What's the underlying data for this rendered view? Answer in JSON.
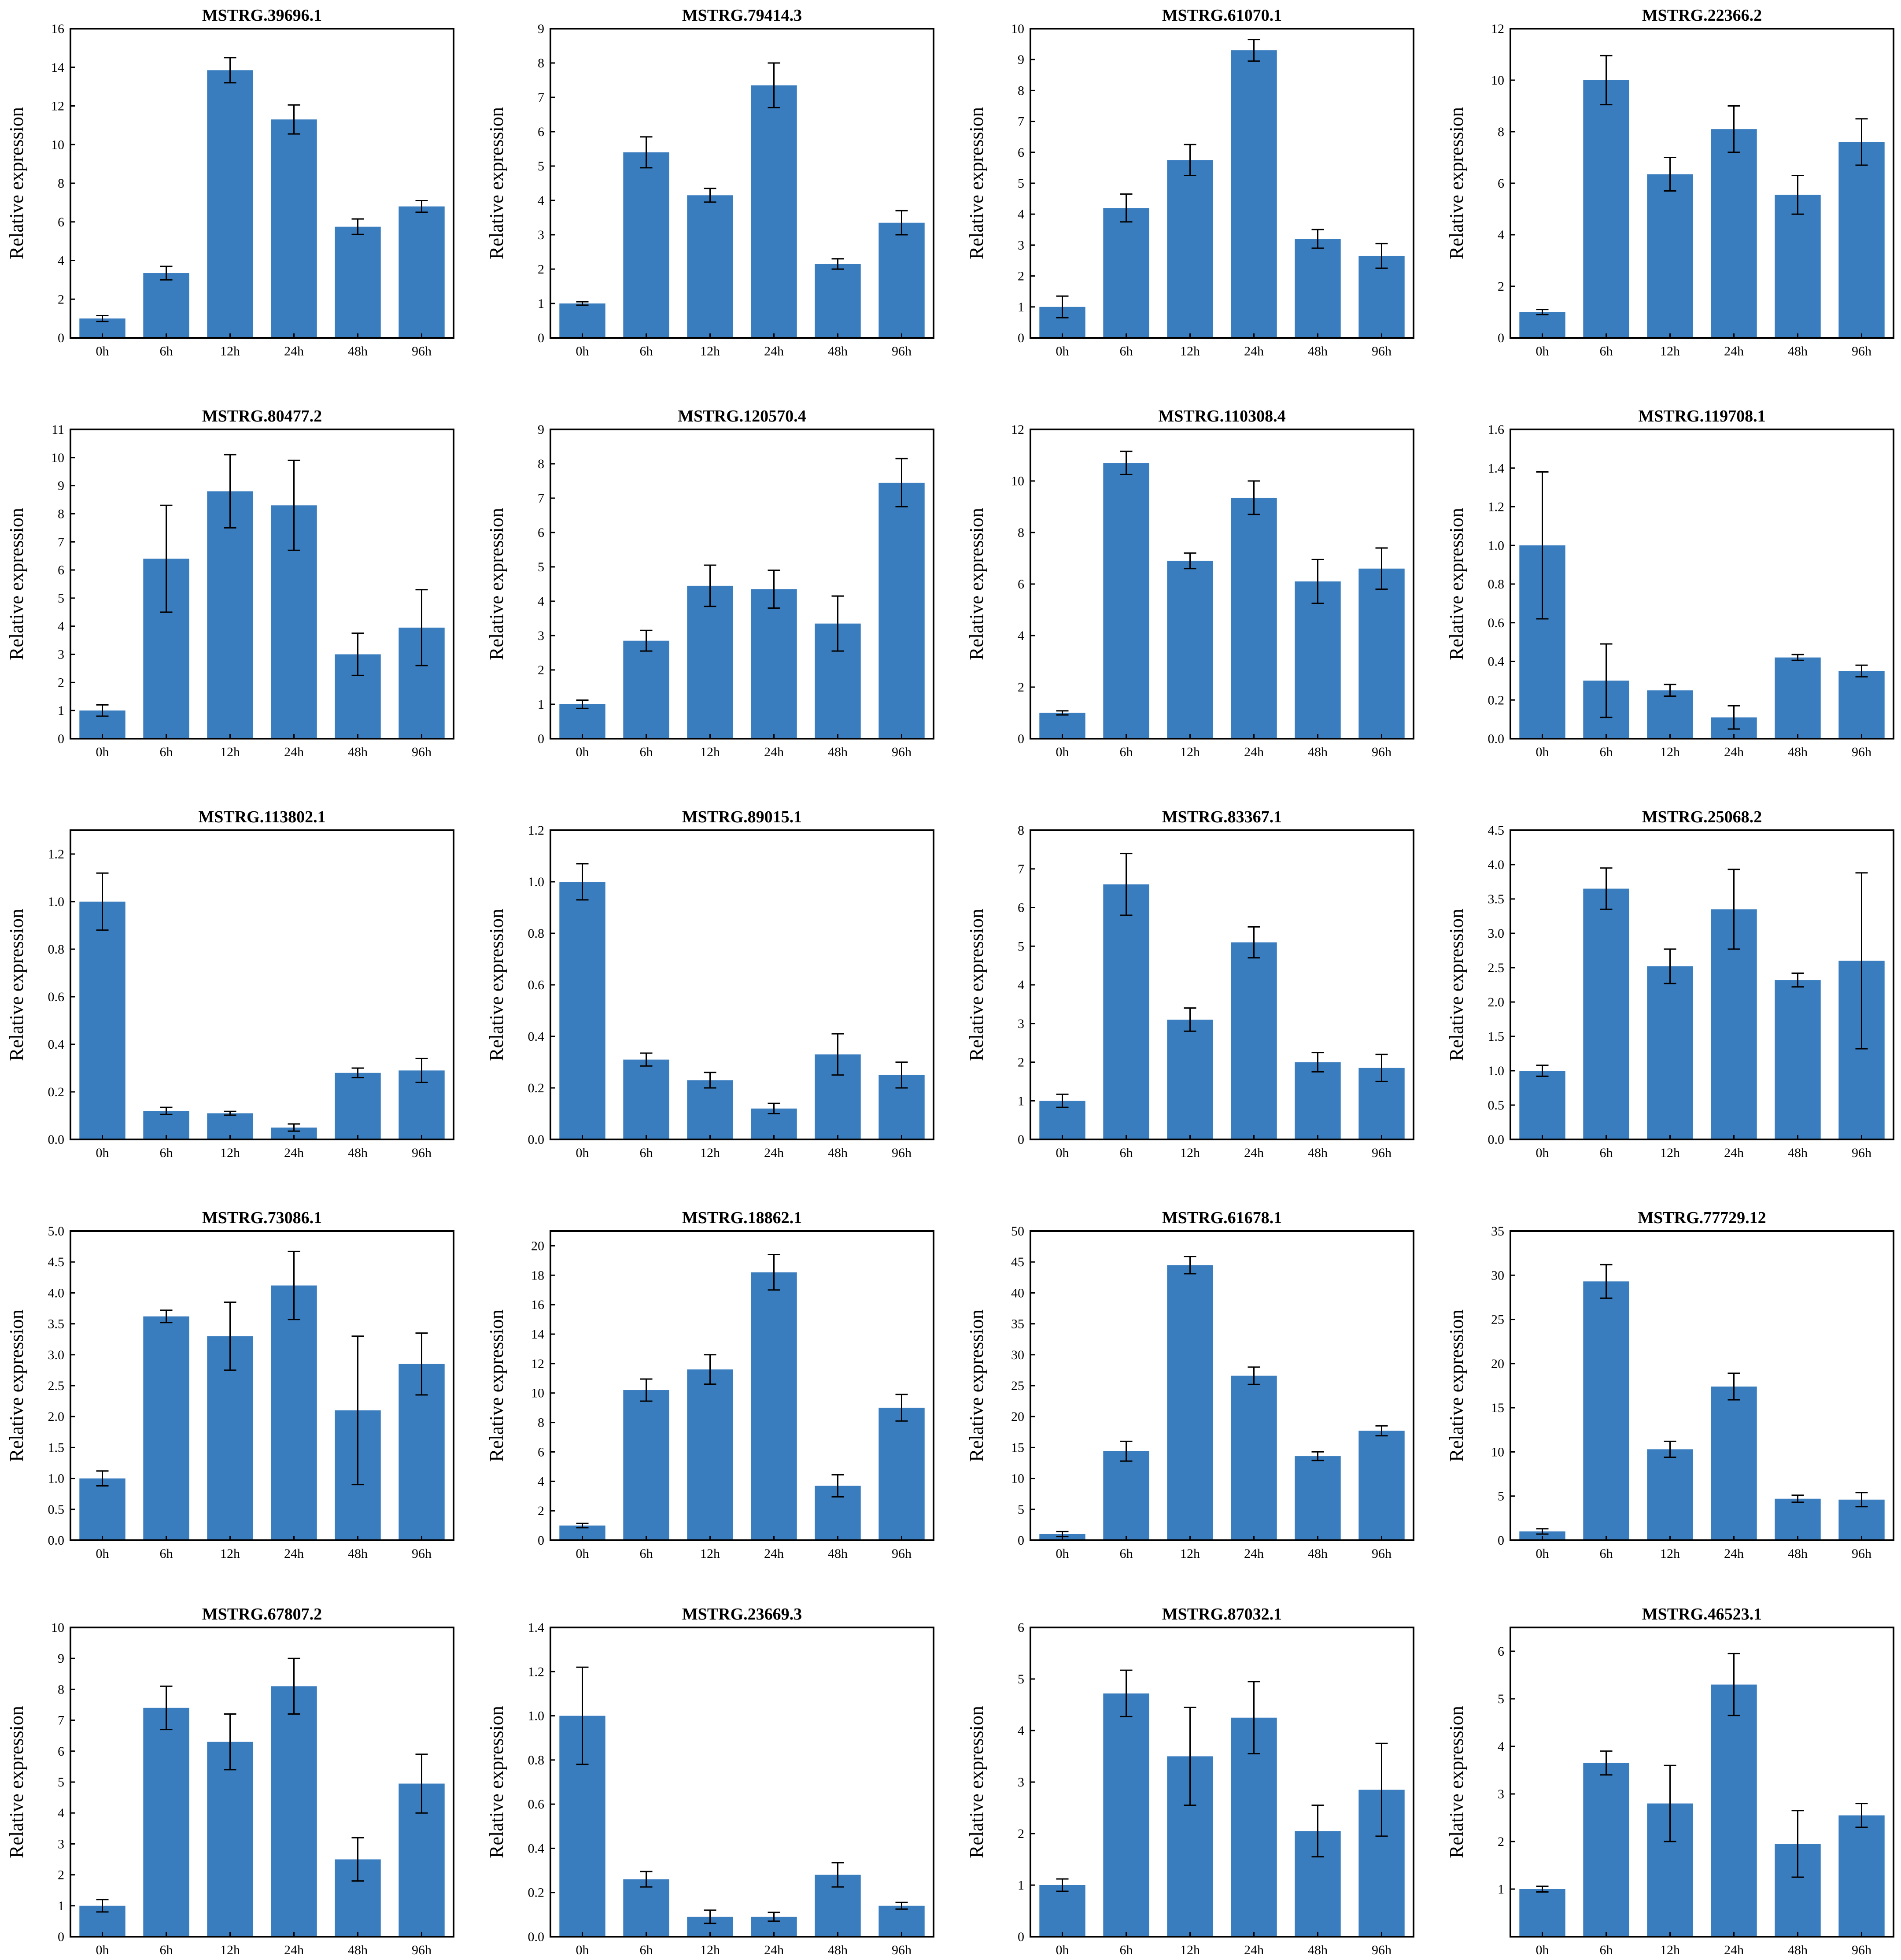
{
  "figure": {
    "bar_color": "#3a7dbf",
    "error_bar_color": "#000000"
  },
  "chart_data": [
    {
      "type": "bar",
      "title": "MSTRG.39696.1",
      "ylabel": "Relative expression",
      "categories": [
        "0h",
        "6h",
        "12h",
        "24h",
        "48h",
        "96h"
      ],
      "values": [
        1.0,
        3.35,
        13.85,
        11.3,
        5.75,
        6.8
      ],
      "errors": [
        0.15,
        0.35,
        0.65,
        0.75,
        0.4,
        0.3
      ],
      "ylim": [
        0,
        16
      ],
      "yticks": [
        0,
        2,
        4,
        6,
        8,
        10,
        12,
        14,
        16
      ]
    },
    {
      "type": "bar",
      "title": "MSTRG.79414.3",
      "ylabel": "Relative expression",
      "categories": [
        "0h",
        "6h",
        "12h",
        "24h",
        "48h",
        "96h"
      ],
      "values": [
        1.0,
        5.4,
        4.15,
        7.35,
        2.15,
        3.35
      ],
      "errors": [
        0.05,
        0.45,
        0.2,
        0.65,
        0.15,
        0.35
      ],
      "ylim": [
        0,
        9
      ],
      "yticks": [
        0,
        1,
        2,
        3,
        4,
        5,
        6,
        7,
        8,
        9
      ]
    },
    {
      "type": "bar",
      "title": "MSTRG.61070.1",
      "ylabel": "Relative expression",
      "categories": [
        "0h",
        "6h",
        "12h",
        "24h",
        "48h",
        "96h"
      ],
      "values": [
        1.0,
        4.2,
        5.75,
        9.3,
        3.2,
        2.65
      ],
      "errors": [
        0.35,
        0.45,
        0.5,
        0.35,
        0.3,
        0.4
      ],
      "ylim": [
        0,
        10
      ],
      "yticks": [
        0,
        1,
        2,
        3,
        4,
        5,
        6,
        7,
        8,
        9,
        10
      ]
    },
    {
      "type": "bar",
      "title": "MSTRG.22366.2",
      "ylabel": "Relative expression",
      "categories": [
        "0h",
        "6h",
        "12h",
        "24h",
        "48h",
        "96h"
      ],
      "values": [
        1.0,
        10.0,
        6.35,
        8.1,
        5.55,
        7.6
      ],
      "errors": [
        0.1,
        0.95,
        0.65,
        0.9,
        0.75,
        0.9
      ],
      "ylim": [
        0,
        12
      ],
      "yticks": [
        0,
        2,
        4,
        6,
        8,
        10,
        12
      ]
    },
    {
      "type": "bar",
      "title": "MSTRG.80477.2",
      "ylabel": "Relative expression",
      "categories": [
        "0h",
        "6h",
        "12h",
        "24h",
        "48h",
        "96h"
      ],
      "values": [
        1.0,
        6.4,
        8.8,
        8.3,
        3.0,
        3.95
      ],
      "errors": [
        0.2,
        1.9,
        1.3,
        1.6,
        0.75,
        1.35
      ],
      "ylim": [
        0,
        11
      ],
      "yticks": [
        0,
        1,
        2,
        3,
        4,
        5,
        6,
        7,
        8,
        9,
        10,
        11
      ]
    },
    {
      "type": "bar",
      "title": "MSTRG.120570.4",
      "ylabel": "Relative expression",
      "categories": [
        "0h",
        "6h",
        "12h",
        "24h",
        "48h",
        "96h"
      ],
      "values": [
        1.0,
        2.85,
        4.45,
        4.35,
        3.35,
        7.45
      ],
      "errors": [
        0.12,
        0.3,
        0.6,
        0.55,
        0.8,
        0.7
      ],
      "ylim": [
        0,
        9
      ],
      "yticks": [
        0,
        1,
        2,
        3,
        4,
        5,
        6,
        7,
        8,
        9
      ]
    },
    {
      "type": "bar",
      "title": "MSTRG.110308.4",
      "ylabel": "Relative expression",
      "categories": [
        "0h",
        "6h",
        "12h",
        "24h",
        "48h",
        "96h"
      ],
      "values": [
        1.0,
        10.7,
        6.9,
        9.35,
        6.1,
        6.6
      ],
      "errors": [
        0.08,
        0.45,
        0.3,
        0.65,
        0.85,
        0.8
      ],
      "ylim": [
        0,
        12
      ],
      "yticks": [
        0,
        2,
        4,
        6,
        8,
        10,
        12
      ]
    },
    {
      "type": "bar",
      "title": "MSTRG.119708.1",
      "ylabel": "Relative expression",
      "categories": [
        "0h",
        "6h",
        "12h",
        "24h",
        "48h",
        "96h"
      ],
      "values": [
        1.0,
        0.3,
        0.25,
        0.11,
        0.42,
        0.35
      ],
      "errors": [
        0.38,
        0.19,
        0.03,
        0.06,
        0.015,
        0.03
      ],
      "ylim": [
        0,
        1.6
      ],
      "yticks": [
        0.0,
        0.2,
        0.4,
        0.6,
        0.8,
        1.0,
        1.2,
        1.4,
        1.6
      ]
    },
    {
      "type": "bar",
      "title": "MSTRG.113802.1",
      "ylabel": "Relative expression",
      "categories": [
        "0h",
        "6h",
        "12h",
        "24h",
        "48h",
        "96h"
      ],
      "values": [
        1.0,
        0.12,
        0.11,
        0.05,
        0.28,
        0.29
      ],
      "errors": [
        0.12,
        0.015,
        0.008,
        0.015,
        0.02,
        0.05
      ],
      "ylim": [
        0,
        1.3
      ],
      "yticks": [
        0.0,
        0.2,
        0.4,
        0.6,
        0.8,
        1.0,
        1.2
      ]
    },
    {
      "type": "bar",
      "title": "MSTRG.89015.1",
      "ylabel": "Relative expression",
      "categories": [
        "0h",
        "6h",
        "12h",
        "24h",
        "48h",
        "96h"
      ],
      "values": [
        1.0,
        0.31,
        0.23,
        0.12,
        0.33,
        0.25
      ],
      "errors": [
        0.07,
        0.025,
        0.03,
        0.02,
        0.08,
        0.05
      ],
      "ylim": [
        0,
        1.2
      ],
      "yticks": [
        0.0,
        0.2,
        0.4,
        0.6,
        0.8,
        1.0,
        1.2
      ]
    },
    {
      "type": "bar",
      "title": "MSTRG.83367.1",
      "ylabel": "Relative expression",
      "categories": [
        "0h",
        "6h",
        "12h",
        "24h",
        "48h",
        "96h"
      ],
      "values": [
        1.0,
        6.6,
        3.1,
        5.1,
        2.0,
        1.85
      ],
      "errors": [
        0.17,
        0.8,
        0.3,
        0.4,
        0.25,
        0.35
      ],
      "ylim": [
        0,
        8
      ],
      "yticks": [
        0,
        1,
        2,
        3,
        4,
        5,
        6,
        7,
        8
      ]
    },
    {
      "type": "bar",
      "title": "MSTRG.25068.2",
      "ylabel": "Relative expression",
      "categories": [
        "0h",
        "6h",
        "12h",
        "24h",
        "48h",
        "96h"
      ],
      "values": [
        1.0,
        3.65,
        2.52,
        3.35,
        2.32,
        2.6
      ],
      "errors": [
        0.08,
        0.3,
        0.25,
        0.58,
        0.1,
        1.28
      ],
      "ylim": [
        0,
        4.5
      ],
      "yticks": [
        0.0,
        0.5,
        1.0,
        1.5,
        2.0,
        2.5,
        3.0,
        3.5,
        4.0,
        4.5
      ]
    },
    {
      "type": "bar",
      "title": "MSTRG.73086.1",
      "ylabel": "Relative expression",
      "categories": [
        "0h",
        "6h",
        "12h",
        "24h",
        "48h",
        "96h"
      ],
      "values": [
        1.0,
        3.62,
        3.3,
        4.12,
        2.1,
        2.85
      ],
      "errors": [
        0.12,
        0.1,
        0.55,
        0.55,
        1.2,
        0.5
      ],
      "ylim": [
        0,
        5.0
      ],
      "yticks": [
        0.0,
        0.5,
        1.0,
        1.5,
        2.0,
        2.5,
        3.0,
        3.5,
        4.0,
        4.5,
        5.0
      ]
    },
    {
      "type": "bar",
      "title": "MSTRG.18862.1",
      "ylabel": "Relative expression",
      "categories": [
        "0h",
        "6h",
        "12h",
        "24h",
        "48h",
        "96h"
      ],
      "values": [
        1.0,
        10.2,
        11.6,
        18.2,
        3.7,
        9.0
      ],
      "errors": [
        0.15,
        0.75,
        1.0,
        1.2,
        0.75,
        0.9
      ],
      "ylim": [
        0,
        21
      ],
      "yticks": [
        0,
        2,
        4,
        6,
        8,
        10,
        12,
        14,
        16,
        18,
        20
      ]
    },
    {
      "type": "bar",
      "title": "MSTRG.61678.1",
      "ylabel": "Relative expression",
      "categories": [
        "0h",
        "6h",
        "12h",
        "24h",
        "48h",
        "96h"
      ],
      "values": [
        1.0,
        14.4,
        44.5,
        26.6,
        13.6,
        17.7
      ],
      "errors": [
        0.4,
        1.6,
        1.4,
        1.4,
        0.7,
        0.8
      ],
      "ylim": [
        0,
        50
      ],
      "yticks": [
        0,
        5,
        10,
        15,
        20,
        25,
        30,
        35,
        40,
        45,
        50
      ]
    },
    {
      "type": "bar",
      "title": "MSTRG.77729.12",
      "ylabel": "Relative expression",
      "categories": [
        "0h",
        "6h",
        "12h",
        "24h",
        "48h",
        "96h"
      ],
      "values": [
        1.0,
        29.3,
        10.3,
        17.4,
        4.7,
        4.6
      ],
      "errors": [
        0.3,
        1.9,
        0.9,
        1.5,
        0.4,
        0.8
      ],
      "ylim": [
        0,
        35
      ],
      "yticks": [
        0,
        5,
        10,
        15,
        20,
        25,
        30,
        35
      ]
    },
    {
      "type": "bar",
      "title": "MSTRG.67807.2",
      "ylabel": "Relative expression",
      "categories": [
        "0h",
        "6h",
        "12h",
        "24h",
        "48h",
        "96h"
      ],
      "values": [
        1.0,
        7.4,
        6.3,
        8.1,
        2.5,
        4.95
      ],
      "errors": [
        0.2,
        0.7,
        0.9,
        0.9,
        0.7,
        0.95
      ],
      "ylim": [
        0,
        10
      ],
      "yticks": [
        0,
        1,
        2,
        3,
        4,
        5,
        6,
        7,
        8,
        9,
        10
      ]
    },
    {
      "type": "bar",
      "title": "MSTRG.23669.3",
      "ylabel": "Relative expression",
      "categories": [
        "0h",
        "6h",
        "12h",
        "24h",
        "48h",
        "96h"
      ],
      "values": [
        1.0,
        0.26,
        0.09,
        0.09,
        0.28,
        0.14
      ],
      "errors": [
        0.22,
        0.035,
        0.03,
        0.02,
        0.055,
        0.015
      ],
      "ylim": [
        0,
        1.4
      ],
      "yticks": [
        0.0,
        0.2,
        0.4,
        0.6,
        0.8,
        1.0,
        1.2,
        1.4
      ]
    },
    {
      "type": "bar",
      "title": "MSTRG.87032.1",
      "ylabel": "Relative expression",
      "categories": [
        "0h",
        "6h",
        "12h",
        "24h",
        "48h",
        "96h"
      ],
      "values": [
        1.0,
        4.72,
        3.5,
        4.25,
        2.05,
        2.85
      ],
      "errors": [
        0.12,
        0.45,
        0.95,
        0.7,
        0.5,
        0.9
      ],
      "ylim": [
        0,
        6
      ],
      "yticks": [
        0,
        1,
        2,
        3,
        4,
        5,
        6
      ]
    },
    {
      "type": "bar",
      "title": "MSTRG.46523.1",
      "ylabel": "Relative expression",
      "categories": [
        "0h",
        "6h",
        "12h",
        "24h",
        "48h",
        "96h"
      ],
      "values": [
        1.0,
        3.65,
        2.8,
        5.3,
        1.95,
        2.55
      ],
      "errors": [
        0.06,
        0.25,
        0.8,
        0.65,
        0.7,
        0.25
      ],
      "ylim": [
        0,
        6.5
      ],
      "yticks": [
        1,
        2,
        3,
        4,
        5,
        6
      ]
    }
  ]
}
